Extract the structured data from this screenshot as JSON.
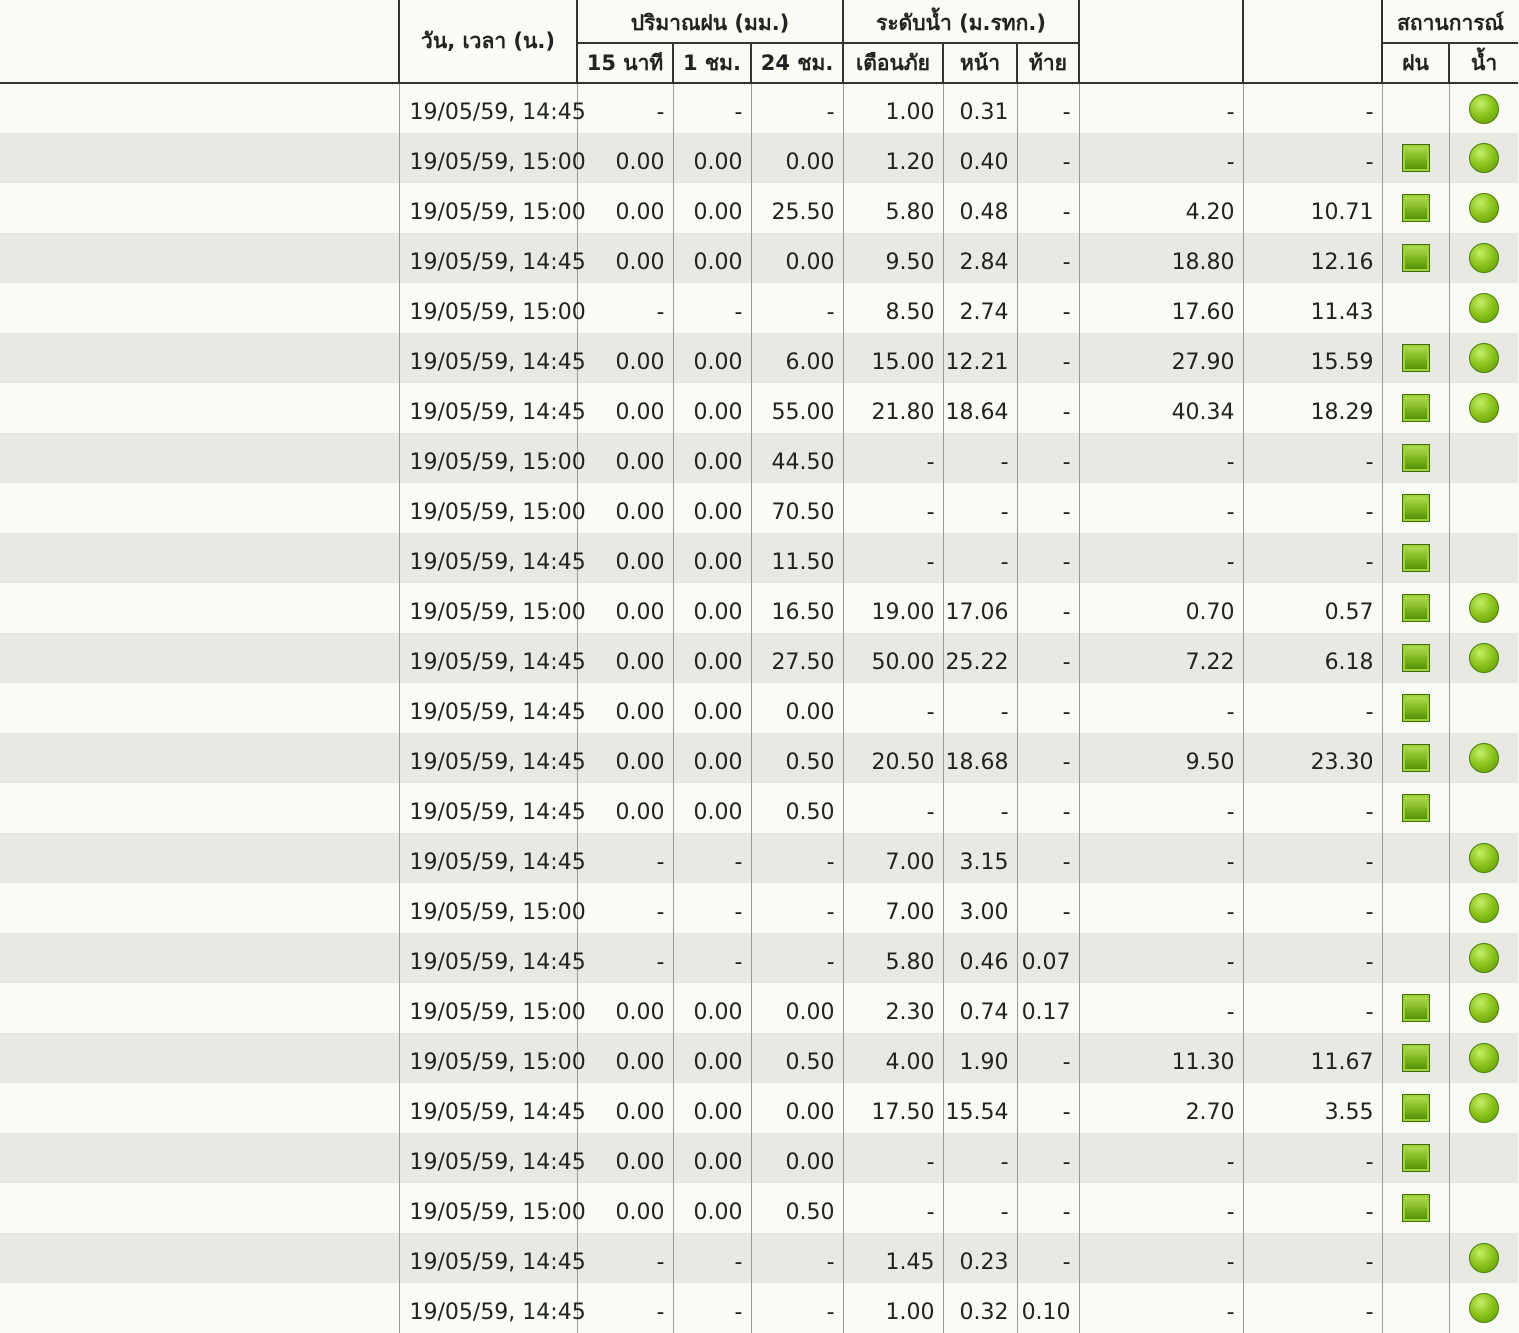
{
  "header": {
    "datetime": "วัน, เวลา (น.)",
    "rain_group": "ปริมาณฝน (มม.)",
    "rain_15min": "15 นาที",
    "rain_1hr": "1 ชม.",
    "rain_24hr": "24 ชม.",
    "level_group": "ระดับน้ำ (ม.รทก.)",
    "level_warn": "เตือนภัย",
    "level_front": "หน้า",
    "level_back": "ท้าย",
    "status_group": "สถานการณ์",
    "status_rain": "ฝน",
    "status_water": "น้ำ"
  },
  "icons": {
    "rain": "green-square-icon",
    "water": "green-circle-icon",
    "color": "#7db51c"
  },
  "rows": [
    {
      "dt": "19/05/59, 14:45",
      "r15": "-",
      "r1": "-",
      "r24": "-",
      "warn": "1.00",
      "front": "0.31",
      "back": "-",
      "e1": "-",
      "e2": "-",
      "rain": false,
      "water": true
    },
    {
      "dt": "19/05/59, 15:00",
      "r15": "0.00",
      "r1": "0.00",
      "r24": "0.00",
      "warn": "1.20",
      "front": "0.40",
      "back": "-",
      "e1": "-",
      "e2": "-",
      "rain": true,
      "water": true
    },
    {
      "dt": "19/05/59, 15:00",
      "r15": "0.00",
      "r1": "0.00",
      "r24": "25.50",
      "warn": "5.80",
      "front": "0.48",
      "back": "-",
      "e1": "4.20",
      "e2": "10.71",
      "rain": true,
      "water": true
    },
    {
      "dt": "19/05/59, 14:45",
      "r15": "0.00",
      "r1": "0.00",
      "r24": "0.00",
      "warn": "9.50",
      "front": "2.84",
      "back": "-",
      "e1": "18.80",
      "e2": "12.16",
      "rain": true,
      "water": true
    },
    {
      "dt": "19/05/59, 15:00",
      "r15": "-",
      "r1": "-",
      "r24": "-",
      "warn": "8.50",
      "front": "2.74",
      "back": "-",
      "e1": "17.60",
      "e2": "11.43",
      "rain": false,
      "water": true
    },
    {
      "dt": "19/05/59, 14:45",
      "r15": "0.00",
      "r1": "0.00",
      "r24": "6.00",
      "warn": "15.00",
      "front": "12.21",
      "back": "-",
      "e1": "27.90",
      "e2": "15.59",
      "rain": true,
      "water": true
    },
    {
      "dt": "19/05/59, 14:45",
      "r15": "0.00",
      "r1": "0.00",
      "r24": "55.00",
      "warn": "21.80",
      "front": "18.64",
      "back": "-",
      "e1": "40.34",
      "e2": "18.29",
      "rain": true,
      "water": true
    },
    {
      "dt": "19/05/59, 15:00",
      "r15": "0.00",
      "r1": "0.00",
      "r24": "44.50",
      "warn": "-",
      "front": "-",
      "back": "-",
      "e1": "-",
      "e2": "-",
      "rain": true,
      "water": false
    },
    {
      "dt": "19/05/59, 15:00",
      "r15": "0.00",
      "r1": "0.00",
      "r24": "70.50",
      "warn": "-",
      "front": "-",
      "back": "-",
      "e1": "-",
      "e2": "-",
      "rain": true,
      "water": false
    },
    {
      "dt": "19/05/59, 14:45",
      "r15": "0.00",
      "r1": "0.00",
      "r24": "11.50",
      "warn": "-",
      "front": "-",
      "back": "-",
      "e1": "-",
      "e2": "-",
      "rain": true,
      "water": false
    },
    {
      "dt": "19/05/59, 15:00",
      "r15": "0.00",
      "r1": "0.00",
      "r24": "16.50",
      "warn": "19.00",
      "front": "17.06",
      "back": "-",
      "e1": "0.70",
      "e2": "0.57",
      "rain": true,
      "water": true
    },
    {
      "dt": "19/05/59, 14:45",
      "r15": "0.00",
      "r1": "0.00",
      "r24": "27.50",
      "warn": "50.00",
      "front": "25.22",
      "back": "-",
      "e1": "7.22",
      "e2": "6.18",
      "rain": true,
      "water": true
    },
    {
      "dt": "19/05/59, 14:45",
      "r15": "0.00",
      "r1": "0.00",
      "r24": "0.00",
      "warn": "-",
      "front": "-",
      "back": "-",
      "e1": "-",
      "e2": "-",
      "rain": true,
      "water": false
    },
    {
      "dt": "19/05/59, 14:45",
      "r15": "0.00",
      "r1": "0.00",
      "r24": "0.50",
      "warn": "20.50",
      "front": "18.68",
      "back": "-",
      "e1": "9.50",
      "e2": "23.30",
      "rain": true,
      "water": true
    },
    {
      "dt": "19/05/59, 14:45",
      "r15": "0.00",
      "r1": "0.00",
      "r24": "0.50",
      "warn": "-",
      "front": "-",
      "back": "-",
      "e1": "-",
      "e2": "-",
      "rain": true,
      "water": false
    },
    {
      "dt": "19/05/59, 14:45",
      "r15": "-",
      "r1": "-",
      "r24": "-",
      "warn": "7.00",
      "front": "3.15",
      "back": "-",
      "e1": "-",
      "e2": "-",
      "rain": false,
      "water": true
    },
    {
      "dt": "19/05/59, 15:00",
      "r15": "-",
      "r1": "-",
      "r24": "-",
      "warn": "7.00",
      "front": "3.00",
      "back": "-",
      "e1": "-",
      "e2": "-",
      "rain": false,
      "water": true
    },
    {
      "dt": "19/05/59, 14:45",
      "r15": "-",
      "r1": "-",
      "r24": "-",
      "warn": "5.80",
      "front": "0.46",
      "back": "0.07",
      "e1": "-",
      "e2": "-",
      "rain": false,
      "water": true
    },
    {
      "dt": "19/05/59, 15:00",
      "r15": "0.00",
      "r1": "0.00",
      "r24": "0.00",
      "warn": "2.30",
      "front": "0.74",
      "back": "0.17",
      "e1": "-",
      "e2": "-",
      "rain": true,
      "water": true
    },
    {
      "dt": "19/05/59, 15:00",
      "r15": "0.00",
      "r1": "0.00",
      "r24": "0.50",
      "warn": "4.00",
      "front": "1.90",
      "back": "-",
      "e1": "11.30",
      "e2": "11.67",
      "rain": true,
      "water": true
    },
    {
      "dt": "19/05/59, 14:45",
      "r15": "0.00",
      "r1": "0.00",
      "r24": "0.00",
      "warn": "17.50",
      "front": "15.54",
      "back": "-",
      "e1": "2.70",
      "e2": "3.55",
      "rain": true,
      "water": true
    },
    {
      "dt": "19/05/59, 14:45",
      "r15": "0.00",
      "r1": "0.00",
      "r24": "0.00",
      "warn": "-",
      "front": "-",
      "back": "-",
      "e1": "-",
      "e2": "-",
      "rain": true,
      "water": false
    },
    {
      "dt": "19/05/59, 15:00",
      "r15": "0.00",
      "r1": "0.00",
      "r24": "0.50",
      "warn": "-",
      "front": "-",
      "back": "-",
      "e1": "-",
      "e2": "-",
      "rain": true,
      "water": false
    },
    {
      "dt": "19/05/59, 14:45",
      "r15": "-",
      "r1": "-",
      "r24": "-",
      "warn": "1.45",
      "front": "0.23",
      "back": "-",
      "e1": "-",
      "e2": "-",
      "rain": false,
      "water": true
    },
    {
      "dt": "19/05/59, 14:45",
      "r15": "-",
      "r1": "-",
      "r24": "-",
      "warn": "1.00",
      "front": "0.32",
      "back": "0.10",
      "e1": "-",
      "e2": "-",
      "rain": false,
      "water": true
    }
  ]
}
